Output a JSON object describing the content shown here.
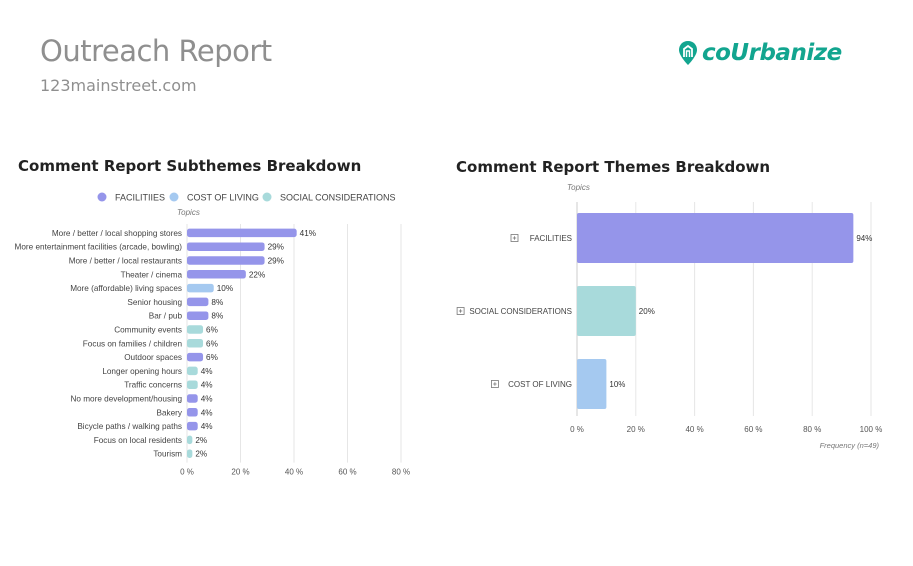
{
  "header": {
    "title": "Outreach Report",
    "url": "123mainstreet.com",
    "logo_text": "coUrbanize"
  },
  "colors": {
    "facilities": "#9595ea",
    "cost_of_living": "#a5c9f0",
    "social_considerations": "#a8dadb",
    "logo": "#12a58f"
  },
  "chart_data": [
    {
      "type": "bar",
      "orientation": "horizontal",
      "title": "Comment Report Subthemes Breakdown",
      "ylabel": "Topics",
      "legend": [
        "FACILITIIES",
        "COST OF LIVING",
        "SOCIAL CONSIDERATIONS"
      ],
      "legend_position": "top",
      "xlim": [
        0,
        80
      ],
      "xticks": [
        "0 %",
        "20 %",
        "40 %",
        "60 %",
        "80 %"
      ],
      "categories": [
        "More / better / local shopping stores",
        "More entertainment facilities (arcade, bowling)",
        "More / better / local restaurants",
        "Theater / cinema",
        "More (affordable) living spaces",
        "Senior housing",
        "Bar / pub",
        "Community events",
        "Focus on families / children",
        "Outdoor spaces",
        "Longer opening hours",
        "Traffic concerns",
        "No more development/housing",
        "Bakery",
        "Bicycle paths / walking paths",
        "Focus on local residents",
        "Tourism"
      ],
      "values": [
        41,
        29,
        29,
        22,
        10,
        8,
        8,
        6,
        6,
        6,
        4,
        4,
        4,
        4,
        4,
        2,
        2
      ],
      "value_labels": [
        "41%",
        "29%",
        "29%",
        "22%",
        "10%",
        "8%",
        "8%",
        "6%",
        "6%",
        "6%",
        "4%",
        "4%",
        "4%",
        "4%",
        "4%",
        "2%",
        "2%"
      ],
      "groups": [
        "facilities",
        "facilities",
        "facilities",
        "facilities",
        "cost_of_living",
        "facilities",
        "facilities",
        "social_considerations",
        "social_considerations",
        "facilities",
        "social_considerations",
        "social_considerations",
        "facilities",
        "facilities",
        "facilities",
        "social_considerations",
        "social_considerations"
      ],
      "grid": true
    },
    {
      "type": "bar",
      "orientation": "horizontal",
      "title": "Comment Report Themes Breakdown",
      "ylabel": "Topics",
      "xlabel": "Frequency (n=49)",
      "xlim": [
        0,
        100
      ],
      "xticks": [
        "0 %",
        "20 %",
        "40 %",
        "60 %",
        "80 %",
        "100 %"
      ],
      "categories": [
        "FACILITIES",
        "SOCIAL CONSIDERATIONS",
        "COST OF LIVING"
      ],
      "values": [
        94,
        20,
        10
      ],
      "value_labels": [
        "94%",
        "20%",
        "10%"
      ],
      "groups": [
        "facilities",
        "social_considerations",
        "cost_of_living"
      ],
      "grid": true
    }
  ]
}
